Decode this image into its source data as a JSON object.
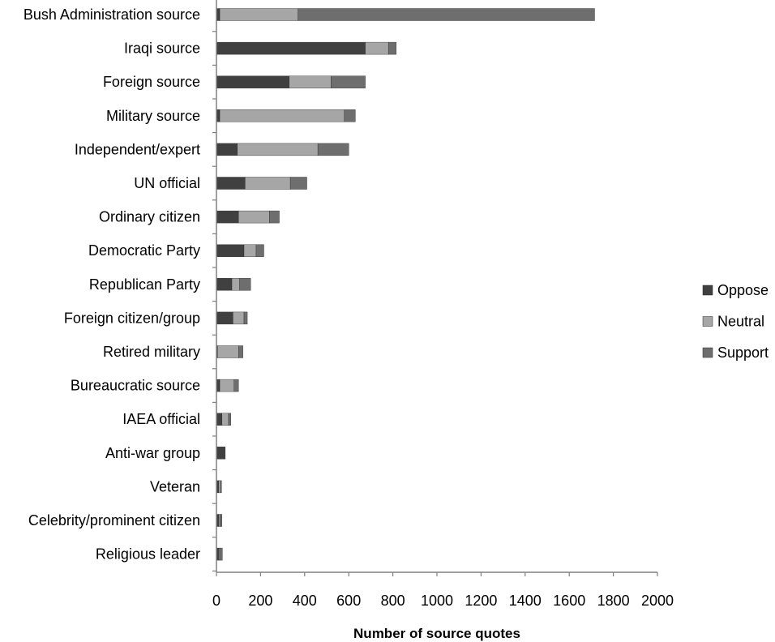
{
  "chart_data": {
    "type": "bar",
    "orientation": "horizontal",
    "stacked": true,
    "categories": [
      "Bush Administration source",
      "Iraqi source",
      "Foreign source",
      "Military source",
      "Independent/expert",
      "UN official",
      "Ordinary citizen",
      "Democratic Party",
      "Republican Party",
      "Foreign citizen/group",
      "Retired military",
      "Bureaucratic source",
      "IAEA official",
      "Anti-war group",
      "Veteran",
      "Celebrity/prominent citizen",
      "Religious leader"
    ],
    "series": [
      {
        "name": "Oppose",
        "color": "#404040",
        "values": [
          15,
          675,
          330,
          15,
          95,
          130,
          100,
          125,
          70,
          75,
          5,
          15,
          25,
          40,
          10,
          10,
          12
        ]
      },
      {
        "name": "Neutral",
        "color": "#a6a6a6",
        "values": [
          355,
          105,
          190,
          565,
          365,
          205,
          140,
          55,
          35,
          50,
          95,
          65,
          30,
          0,
          8,
          5,
          5
        ]
      },
      {
        "name": "Support",
        "color": "#6e6e6e",
        "values": [
          1345,
          35,
          155,
          50,
          140,
          75,
          45,
          35,
          50,
          15,
          20,
          20,
          10,
          0,
          5,
          10,
          10
        ]
      }
    ],
    "xlabel": "Number of source quotes",
    "ylabel": "",
    "xlim": [
      0,
      2000
    ],
    "xticks": [
      0,
      200,
      400,
      600,
      800,
      1000,
      1200,
      1400,
      1600,
      1800,
      2000
    ],
    "grid": false,
    "legend_position": "right"
  }
}
